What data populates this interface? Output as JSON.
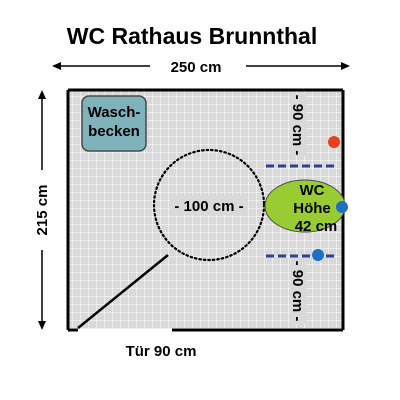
{
  "title": "WC Rathaus Brunnthal",
  "dimensions": {
    "width_label": "250 cm",
    "height_label": "215 cm",
    "door_label": "Tür 90 cm",
    "turning_circle_label": "- 100 cm -",
    "clearance_top_label": "- 90 cm -",
    "clearance_bottom_label": "- 90 cm -"
  },
  "fixtures": {
    "sink_line1": "Wasch-",
    "sink_line2": "becken",
    "toilet_line1": "WC",
    "toilet_line2": "Höhe",
    "toilet_line3": "42 cm"
  },
  "colors": {
    "floor_tile": "#d9d9d9",
    "tile_line": "#ffffff",
    "sink": "#7fb3bb",
    "toilet": "#99cc33",
    "grab_bar": "#2f3f93",
    "alarm_button": "#e8401c",
    "flush_button": "#1f6fc4",
    "wall": "#000000"
  }
}
